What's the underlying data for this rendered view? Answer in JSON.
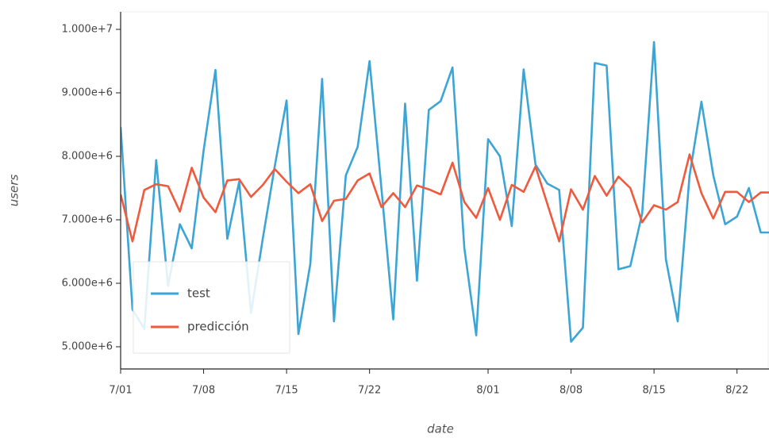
{
  "chart_data": {
    "type": "line",
    "x_label": "date",
    "y_label": "users",
    "x": [
      0,
      1,
      2,
      3,
      4,
      5,
      6,
      7,
      8,
      9,
      10,
      11,
      12,
      13,
      14,
      15,
      16,
      17,
      18,
      19,
      20,
      21,
      22,
      23,
      24,
      25,
      26,
      27,
      28,
      29,
      30,
      31,
      32,
      33,
      34,
      35,
      36,
      37,
      38,
      39,
      40,
      41,
      42,
      43,
      44,
      45,
      46,
      47,
      48,
      49,
      50,
      51,
      52,
      53,
      54,
      55
    ],
    "series": [
      {
        "name": "test",
        "color": "#3ca5d6",
        "values": [
          8460000,
          5590000,
          5280000,
          7940000,
          5960000,
          6930000,
          6550000,
          8090000,
          9360000,
          6700000,
          7600000,
          5530000,
          6710000,
          7840000,
          8880000,
          5200000,
          6300000,
          9220000,
          5400000,
          7700000,
          8150000,
          9500000,
          7500000,
          5430000,
          8830000,
          6040000,
          8730000,
          8870000,
          9400000,
          6550000,
          5180000,
          8270000,
          8000000,
          6900000,
          9370000,
          7870000,
          7570000,
          7470000,
          5080000,
          5300000,
          9470000,
          9430000,
          6220000,
          6270000,
          7100000,
          9800000,
          6380000,
          5400000,
          7700000,
          8860000,
          7700000,
          6930000,
          7050000,
          7500000,
          6800000,
          6800000
        ]
      },
      {
        "name": "predicción",
        "color": "#f05a3c",
        "values": [
          7400000,
          6660000,
          7470000,
          7560000,
          7530000,
          7130000,
          7820000,
          7350000,
          7120000,
          7620000,
          7640000,
          7360000,
          7550000,
          7800000,
          7600000,
          7420000,
          7560000,
          6980000,
          7300000,
          7330000,
          7620000,
          7730000,
          7200000,
          7420000,
          7200000,
          7540000,
          7480000,
          7400000,
          7900000,
          7280000,
          7030000,
          7500000,
          7000000,
          7550000,
          7440000,
          7840000,
          7250000,
          6660000,
          7480000,
          7160000,
          7690000,
          7380000,
          7680000,
          7500000,
          6960000,
          7230000,
          7160000,
          7280000,
          8030000,
          7420000,
          7020000,
          7440000,
          7440000,
          7280000,
          7430000,
          7430000
        ]
      }
    ],
    "xlim": [
      0,
      54.7
    ],
    "xticks": [
      {
        "value": 0,
        "label": "7/01"
      },
      {
        "value": 7,
        "label": "7/08"
      },
      {
        "value": 14,
        "label": "7/15"
      },
      {
        "value": 21,
        "label": "7/22"
      },
      {
        "value": 31,
        "label": "8/01"
      },
      {
        "value": 38,
        "label": "8/08"
      },
      {
        "value": 45,
        "label": "8/15"
      },
      {
        "value": 52,
        "label": "8/22"
      }
    ],
    "ylim": [
      4650000,
      10275000
    ],
    "yticks": [
      {
        "value": 5000000,
        "label": "5.000e+6"
      },
      {
        "value": 6000000,
        "label": "6.000e+6"
      },
      {
        "value": 7000000,
        "label": "7.000e+6"
      },
      {
        "value": 8000000,
        "label": "8.000e+6"
      },
      {
        "value": 9000000,
        "label": "9.000e+6"
      },
      {
        "value": 10000000,
        "label": "1.000e+7"
      }
    ],
    "grid": false,
    "legend_position": "bottom-left"
  }
}
